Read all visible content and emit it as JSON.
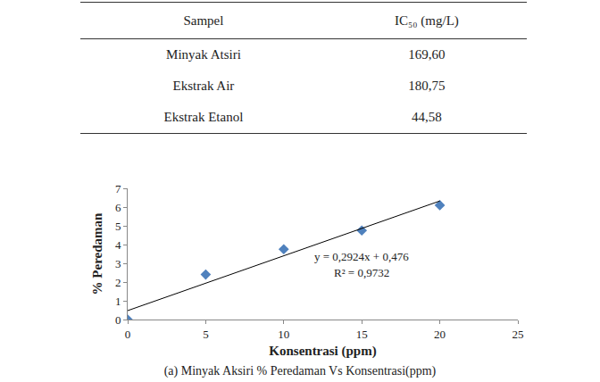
{
  "table": {
    "header": [
      "Sampel",
      "IC₅₀ (mg/L)"
    ],
    "rows": [
      [
        "Minyak Atsiri",
        "169,60"
      ],
      [
        "Ekstrak Air",
        "180,75"
      ],
      [
        "Ekstrak Etanol",
        "44,58"
      ]
    ]
  },
  "chart_data": {
    "type": "scatter",
    "caption": "(a) Minyak Aksiri % Peredaman Vs Konsentrasi(ppm)",
    "x_label": "Konsentrasi (ppm)",
    "y_label": "% Peredaman",
    "series": [
      {
        "type": "scatter",
        "marker": "diamond",
        "color": "#4f81bd",
        "x": [
          0,
          5,
          10,
          15,
          20
        ],
        "values": [
          0,
          2.4,
          3.75,
          4.75,
          6.1
        ]
      },
      {
        "type": "line",
        "line_style": "solid",
        "color": "#000000",
        "x": [
          0,
          20
        ],
        "values": [
          0.476,
          6.324
        ]
      }
    ],
    "annotations": [
      "y = 0,2924x + 0,476",
      "R² = 0,9732"
    ],
    "xlim": [
      0,
      25
    ],
    "xticks": [
      0,
      5,
      10,
      15,
      20,
      25
    ],
    "ylim": [
      0,
      7
    ],
    "yticks": [
      0,
      1,
      2,
      3,
      4,
      5,
      6,
      7
    ],
    "grid": false
  }
}
